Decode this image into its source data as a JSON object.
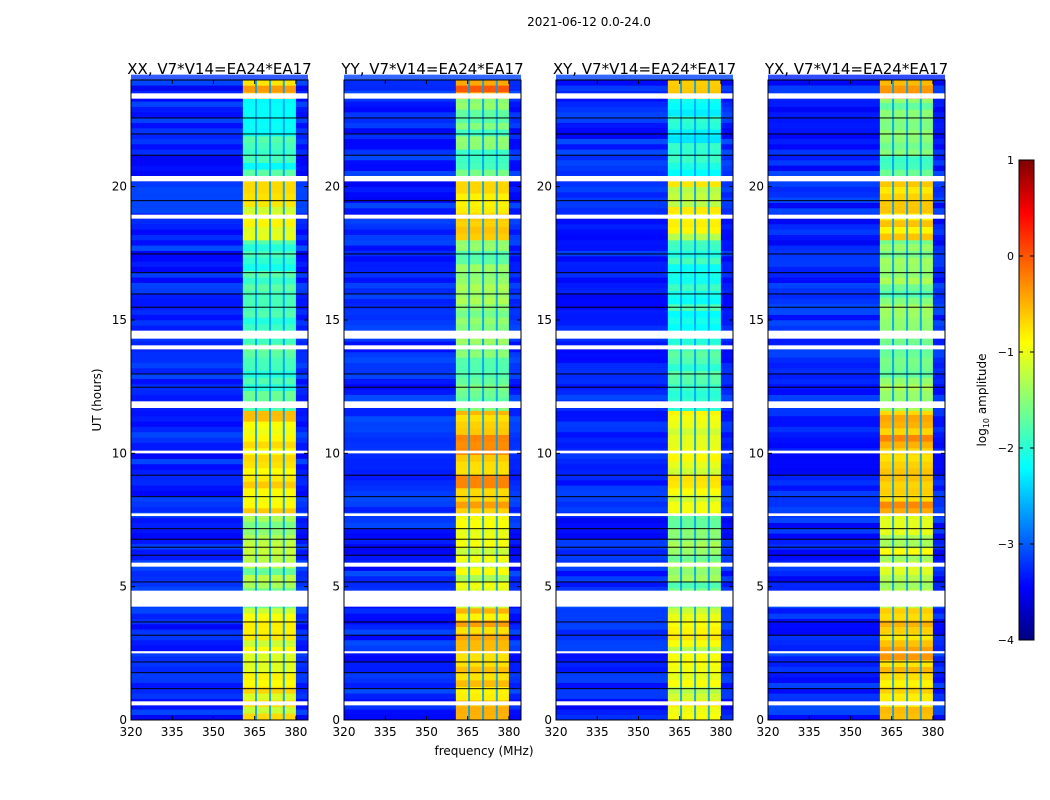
{
  "chart_data": {
    "type": "heatmap",
    "title": "2021-06-12 0.0-24.0",
    "xlabel": "frequency (MHz)",
    "ylabel": "UT (hours)",
    "xlim": [
      320,
      384.4
    ],
    "ylim": [
      0,
      24
    ],
    "xticks": [
      320,
      335,
      350,
      365,
      380
    ],
    "yticks": [
      0,
      5,
      10,
      15,
      20
    ],
    "panels": [
      {
        "title": "XX, V7*V14=EA24*EA17",
        "band_boost": 0.0
      },
      {
        "title": "YY, V7*V14=EA24*EA17",
        "band_boost": 0.3
      },
      {
        "title": "XY, V7*V14=EA24*EA17",
        "band_boost": -0.1
      },
      {
        "title": "YX, V7*V14=EA24*EA17",
        "band_boost": 0.3
      }
    ],
    "background_level": -3.2,
    "band": {
      "freq_range": [
        360.7,
        380.0
      ],
      "channel_gaps_mhz": [
        365.5,
        370.6,
        375.6
      ],
      "segments": [
        {
          "start": 0.0,
          "end": 4.2,
          "level": -0.9
        },
        {
          "start": 4.2,
          "end": 7.7,
          "level": -1.4
        },
        {
          "start": 7.7,
          "end": 11.6,
          "level": -0.8
        },
        {
          "start": 11.6,
          "end": 18.0,
          "level": -1.8
        },
        {
          "start": 18.0,
          "end": 20.4,
          "level": -0.9
        },
        {
          "start": 20.4,
          "end": 23.3,
          "level": -1.9
        },
        {
          "start": 23.3,
          "end": 24.0,
          "level": -0.6
        }
      ]
    },
    "flagged_hours": [
      [
        23.3,
        23.5
      ],
      [
        20.2,
        20.4
      ],
      [
        18.8,
        18.95
      ],
      [
        14.3,
        14.6
      ],
      [
        13.9,
        14.05
      ],
      [
        11.7,
        11.95
      ],
      [
        10.0,
        10.1
      ],
      [
        7.65,
        7.75
      ],
      [
        5.75,
        5.9
      ],
      [
        4.25,
        4.85
      ],
      [
        2.5,
        2.58
      ],
      [
        0.55,
        0.7
      ]
    ],
    "dark_lines_hours": [
      22.6,
      22.0,
      21.2,
      19.5,
      17.5,
      16.8,
      16.0,
      15.5,
      13.0,
      12.5,
      9.2,
      8.4,
      7.2,
      6.8,
      6.5,
      6.2,
      5.2,
      3.7,
      3.2,
      2.2,
      1.8,
      1.2
    ],
    "colorbar": {
      "label": "log10 amplitude",
      "label_main": "log",
      "label_sub": "10",
      "label_rest": " amplitude",
      "range": [
        -4,
        1
      ],
      "ticks": [
        "1",
        "0",
        "−1",
        "−2",
        "−3",
        "−4"
      ],
      "tick_values": [
        1,
        0,
        -1,
        -2,
        -3,
        -4
      ]
    }
  }
}
